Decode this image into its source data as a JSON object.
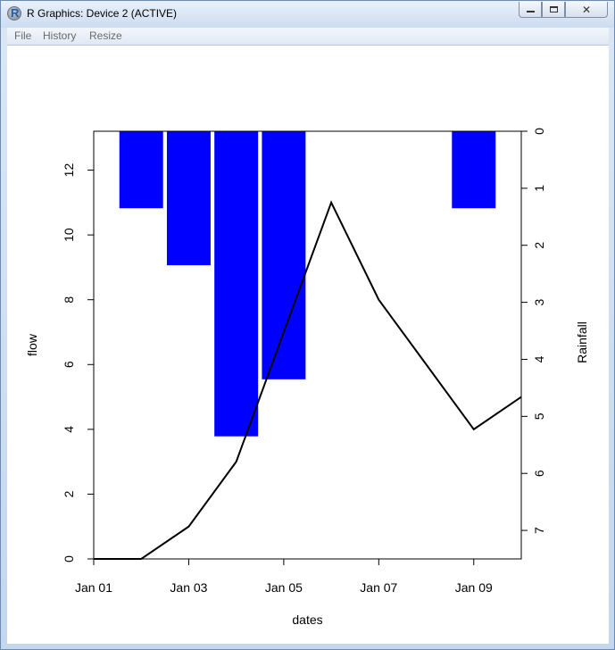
{
  "window": {
    "title": "R Graphics: Device 2 (ACTIVE)",
    "close_glyph": "✕"
  },
  "menu": {
    "items": [
      "File",
      "History",
      "Resize"
    ]
  },
  "chart_data": {
    "type": "bar+line",
    "xlabel": "dates",
    "ylabel_left": "flow",
    "ylabel_right": "Rainfall",
    "x_ticks": [
      "Jan 01",
      "Jan 03",
      "Jan 05",
      "Jan 07",
      "Jan 09"
    ],
    "x_tick_dates": [
      "2000-01-01",
      "2000-01-03",
      "2000-01-05",
      "2000-01-07",
      "2000-01-09"
    ],
    "xlim": [
      "2000-01-01",
      "2000-01-10"
    ],
    "y_left_ticks": [
      0,
      2,
      4,
      6,
      8,
      10,
      12
    ],
    "ylim_left": [
      0,
      13.2
    ],
    "y_right_ticks": [
      0,
      1,
      2,
      3,
      4,
      5,
      6,
      7
    ],
    "ylim_right": [
      0,
      7.5
    ],
    "y_right_reversed": true,
    "bar_color": "#0000ff",
    "line_color": "#000000",
    "flow": {
      "dates": [
        "2000-01-01",
        "2000-01-02",
        "2000-01-03",
        "2000-01-04",
        "2000-01-05",
        "2000-01-06",
        "2000-01-07",
        "2000-01-08",
        "2000-01-09",
        "2000-01-10"
      ],
      "values": [
        0,
        0,
        1,
        3,
        7,
        11,
        8,
        6,
        4,
        5
      ]
    },
    "rainfall": {
      "dates": [
        "2000-01-02",
        "2000-01-03",
        "2000-01-04",
        "2000-01-05",
        "2000-01-09"
      ],
      "values": [
        1.35,
        2.35,
        5.35,
        4.35,
        1.35
      ]
    }
  }
}
